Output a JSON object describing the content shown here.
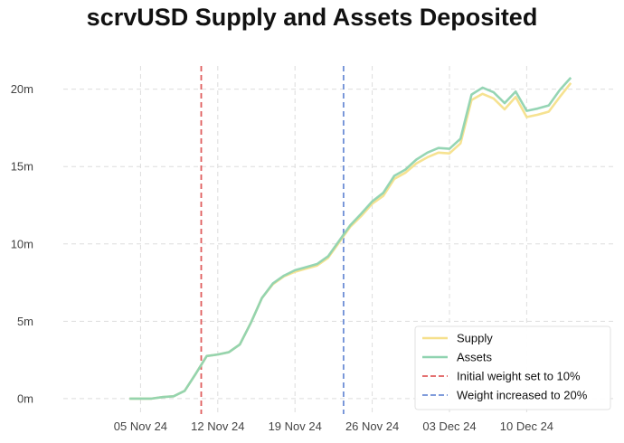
{
  "chart_data": {
    "type": "line",
    "title": "scrvUSD Supply and Assets Deposited",
    "xlabel": "",
    "ylabel": "",
    "x_range": [
      "2024-10-29",
      "2024-12-18"
    ],
    "ylim": [
      -1,
      21.5
    ],
    "y_unit": "m",
    "x_ticks": [
      {
        "date": "2024-11-05",
        "label": "05 Nov 24"
      },
      {
        "date": "2024-11-12",
        "label": "12 Nov 24"
      },
      {
        "date": "2024-11-19",
        "label": "19 Nov 24"
      },
      {
        "date": "2024-11-26",
        "label": "26 Nov 24"
      },
      {
        "date": "2024-12-03",
        "label": "03 Dec 24"
      },
      {
        "date": "2024-12-10",
        "label": "10 Dec 24"
      }
    ],
    "y_ticks": [
      {
        "value": 0,
        "label": "0m"
      },
      {
        "value": 5,
        "label": "5m"
      },
      {
        "value": 10,
        "label": "10m"
      },
      {
        "value": 15,
        "label": "15m"
      },
      {
        "value": 20,
        "label": "20m"
      }
    ],
    "grid": true,
    "legend_position": "bottom-right",
    "dates": [
      "2024-11-04",
      "2024-11-05",
      "2024-11-06",
      "2024-11-07",
      "2024-11-08",
      "2024-11-09",
      "2024-11-10",
      "2024-11-11",
      "2024-11-12",
      "2024-11-13",
      "2024-11-14",
      "2024-11-15",
      "2024-11-16",
      "2024-11-17",
      "2024-11-18",
      "2024-11-19",
      "2024-11-20",
      "2024-11-21",
      "2024-11-22",
      "2024-11-23",
      "2024-11-24",
      "2024-11-25",
      "2024-11-26",
      "2024-11-27",
      "2024-11-28",
      "2024-11-29",
      "2024-11-30",
      "2024-12-01",
      "2024-12-02",
      "2024-12-03",
      "2024-12-04",
      "2024-12-05",
      "2024-12-06",
      "2024-12-07",
      "2024-12-08",
      "2024-12-09",
      "2024-12-10",
      "2024-12-11",
      "2024-12-12",
      "2024-12-13",
      "2024-12-14"
    ],
    "series": [
      {
        "name": "Supply",
        "color": "#f6e08b",
        "values": [
          0.0,
          0.0,
          0.0,
          0.1,
          0.15,
          0.5,
          1.6,
          2.75,
          2.85,
          3.0,
          3.5,
          4.9,
          6.5,
          7.4,
          7.9,
          8.2,
          8.4,
          8.6,
          9.1,
          10.1,
          11.1,
          11.8,
          12.6,
          13.1,
          14.2,
          14.6,
          15.2,
          15.6,
          15.9,
          15.85,
          16.5,
          19.3,
          19.7,
          19.4,
          18.7,
          19.5,
          18.2,
          18.35,
          18.55,
          19.5,
          20.4
        ]
      },
      {
        "name": "Assets",
        "color": "#8fd3b0",
        "values": [
          0.0,
          0.0,
          0.0,
          0.1,
          0.15,
          0.5,
          1.6,
          2.75,
          2.85,
          3.0,
          3.5,
          4.9,
          6.5,
          7.45,
          7.95,
          8.3,
          8.5,
          8.7,
          9.2,
          10.2,
          11.2,
          11.95,
          12.75,
          13.3,
          14.4,
          14.8,
          15.45,
          15.9,
          16.2,
          16.15,
          16.8,
          19.65,
          20.1,
          19.8,
          19.1,
          19.85,
          18.6,
          18.75,
          18.95,
          19.95,
          20.75
        ]
      }
    ],
    "vlines": [
      {
        "date": "2024-11-10.5",
        "label": "Initial weight set to 10%",
        "color": "#e05c5c"
      },
      {
        "date": "2024-11-23.4",
        "label": "Weight increased to 20%",
        "color": "#6f8fd6"
      }
    ]
  }
}
